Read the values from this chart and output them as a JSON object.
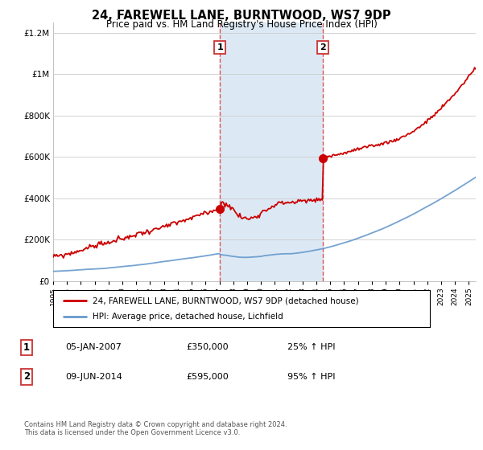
{
  "title": "24, FAREWELL LANE, BURNTWOOD, WS7 9DP",
  "subtitle": "Price paid vs. HM Land Registry's House Price Index (HPI)",
  "chart_bg_color": "#ffffff",
  "hpi_color": "#6699cc",
  "price_color": "#cc0000",
  "highlight_box_color": "#dce9f5",
  "vline_color": "#dd4444",
  "grid_color": "#cccccc",
  "sale1_year": 2007.03,
  "sale1_price": 350000,
  "sale2_year": 2014.44,
  "sale2_price": 595000,
  "ylim": [
    0,
    1250000
  ],
  "xlim_start": 1995.0,
  "xlim_end": 2025.5,
  "yticks": [
    0,
    200000,
    400000,
    600000,
    800000,
    1000000,
    1200000
  ],
  "ytick_labels": [
    "£0",
    "£200K",
    "£400K",
    "£600K",
    "£800K",
    "£1M",
    "£1.2M"
  ],
  "xtick_years": [
    1995,
    1996,
    1997,
    1998,
    1999,
    2000,
    2001,
    2002,
    2003,
    2004,
    2005,
    2006,
    2007,
    2008,
    2009,
    2010,
    2011,
    2012,
    2013,
    2014,
    2015,
    2016,
    2017,
    2018,
    2019,
    2020,
    2021,
    2022,
    2023,
    2024,
    2025
  ],
  "footer": "Contains HM Land Registry data © Crown copyright and database right 2024.\nThis data is licensed under the Open Government Licence v3.0.",
  "legend_line1": "24, FAREWELL LANE, BURNTWOOD, WS7 9DP (detached house)",
  "legend_line2": "HPI: Average price, detached house, Lichfield",
  "annotation1_date": "05-JAN-2007",
  "annotation1_price": "£350,000",
  "annotation1_hpi": "25% ↑ HPI",
  "annotation2_date": "09-JUN-2014",
  "annotation2_price": "£595,000",
  "annotation2_hpi": "95% ↑ HPI"
}
